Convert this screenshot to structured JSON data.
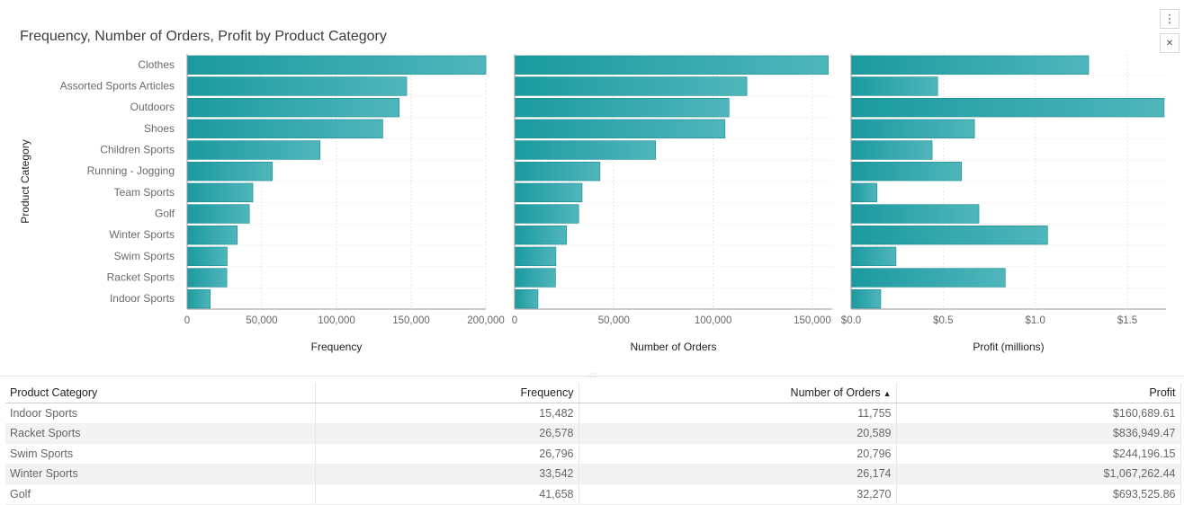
{
  "title": "Frequency, Number of Orders, Profit by Product Category",
  "icons": {
    "menu": "more-vertical-icon",
    "maximize": "maximize-icon"
  },
  "colors": {
    "bar": "#1a9aa0",
    "bar_light": "#4fb6bb",
    "grid": "#e6e6e6",
    "axis": "#999999"
  },
  "chart_data": [
    {
      "type": "bar",
      "orientation": "horizontal",
      "ylabel": "Product Category",
      "xlabel": "Frequency",
      "categories": [
        "Clothes",
        "Assorted Sports Articles",
        "Outdoors",
        "Shoes",
        "Children Sports",
        "Running - Jogging",
        "Team Sports",
        "Golf",
        "Winter Sports",
        "Swim Sports",
        "Racket Sports",
        "Indoor Sports"
      ],
      "values": [
        200000,
        147000,
        142000,
        131000,
        89000,
        57000,
        44000,
        41658,
        33542,
        26796,
        26578,
        15482
      ],
      "xlim": [
        0,
        200000
      ],
      "ticks": [
        0,
        50000,
        100000,
        150000,
        200000
      ],
      "tick_labels": [
        "0",
        "50,000",
        "100,000",
        "150,000",
        "200,000"
      ],
      "grid": true
    },
    {
      "type": "bar",
      "orientation": "horizontal",
      "xlabel": "Number of Orders",
      "categories": [
        "Clothes",
        "Assorted Sports Articles",
        "Outdoors",
        "Shoes",
        "Children Sports",
        "Running - Jogging",
        "Team Sports",
        "Golf",
        "Winter Sports",
        "Swim Sports",
        "Racket Sports",
        "Indoor Sports"
      ],
      "values": [
        158000,
        117000,
        108000,
        106000,
        71000,
        43000,
        34000,
        32270,
        26174,
        20796,
        20589,
        11755
      ],
      "xlim": [
        0,
        160000
      ],
      "ticks": [
        0,
        50000,
        100000,
        150000
      ],
      "tick_labels": [
        "0",
        "50,000",
        "100,000",
        "150,000"
      ],
      "grid": true
    },
    {
      "type": "bar",
      "orientation": "horizontal",
      "xlabel": "Profit (millions)",
      "categories": [
        "Clothes",
        "Assorted Sports Articles",
        "Outdoors",
        "Shoes",
        "Children Sports",
        "Running - Jogging",
        "Team Sports",
        "Golf",
        "Winter Sports",
        "Swim Sports",
        "Racket Sports",
        "Indoor Sports"
      ],
      "values": [
        1.29,
        0.47,
        1.7,
        0.67,
        0.44,
        0.6,
        0.14,
        0.694,
        1.067,
        0.244,
        0.837,
        0.161
      ],
      "xlim": [
        0,
        1.71
      ],
      "ticks": [
        0,
        0.5,
        1.0,
        1.5
      ],
      "tick_labels": [
        "$0.0",
        "$0.5",
        "$1.0",
        "$1.5"
      ],
      "grid": true
    }
  ],
  "table": {
    "columns": [
      "Product Category",
      "Frequency",
      "Number of Orders",
      "Profit"
    ],
    "sort_indicator": "▲",
    "rows": [
      [
        "Indoor Sports",
        "15,482",
        "11,755",
        "$160,689.61"
      ],
      [
        "Racket Sports",
        "26,578",
        "20,589",
        "$836,949.47"
      ],
      [
        "Swim Sports",
        "26,796",
        "20,796",
        "$244,196.15"
      ],
      [
        "Winter Sports",
        "33,542",
        "26,174",
        "$1,067,262.44"
      ],
      [
        "Golf",
        "41,658",
        "32,270",
        "$693,525.86"
      ]
    ]
  }
}
